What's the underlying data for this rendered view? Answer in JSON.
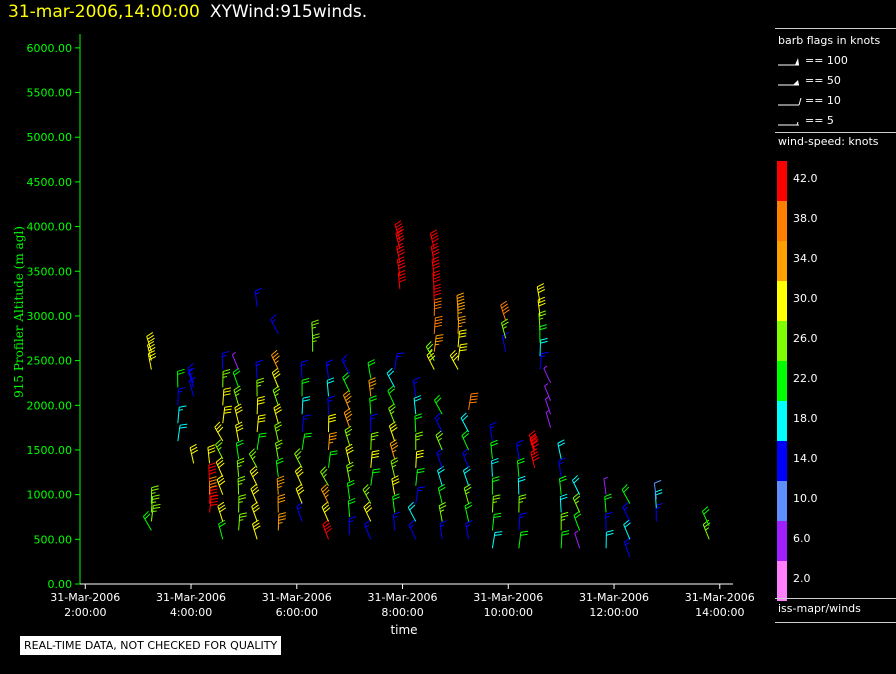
{
  "header": {
    "timestamp": "31-mar-2006,14:00:00",
    "title": "XYWind:915winds."
  },
  "legend": {
    "barb_title": "barb flags in knots",
    "barb_items": [
      "== 100",
      "== 50",
      "== 10",
      "== 5"
    ],
    "speed_title": "wind-speed: knots",
    "color_bins": [
      {
        "label": "42.0",
        "color": "#ff0000"
      },
      {
        "label": "38.0",
        "color": "#ff7f00"
      },
      {
        "label": "34.0",
        "color": "#ff9f00"
      },
      {
        "label": "30.0",
        "color": "#ffff00"
      },
      {
        "label": "26.0",
        "color": "#7fff00"
      },
      {
        "label": "22.0",
        "color": "#00ff00"
      },
      {
        "label": "18.0",
        "color": "#00ffff"
      },
      {
        "label": "14.0",
        "color": "#0000ff"
      },
      {
        "label": "10.0",
        "color": "#5f8fff"
      },
      {
        "label": "6.0",
        "color": "#9f1fff"
      },
      {
        "label": "2.0",
        "color": "#ff7fff"
      }
    ],
    "source": "iss-mapr/winds"
  },
  "notice": "REAL-TIME DATA, NOT CHECKED FOR QUALITY",
  "chart_data": {
    "type": "scatter",
    "subtype": "wind-barb profile",
    "xlabel": "time",
    "ylabel": "915 Profiler Altitude (m agl)",
    "axis_color": "#00ff00",
    "x_range_hours": [
      2,
      14
    ],
    "ylim": [
      0,
      6200
    ],
    "y_ticks": [
      0,
      500,
      1000,
      1500,
      2000,
      2500,
      3000,
      3500,
      4000,
      4500,
      5000,
      5500,
      6000
    ],
    "y_tick_labels": [
      "0.00",
      "500.00",
      "1000.00",
      "1500.00",
      "2000.00",
      "2500.00",
      "3000.00",
      "3500.00",
      "4000.00",
      "4500.00",
      "5000.00",
      "5500.00",
      "6000.00"
    ],
    "x_ticks": [
      2,
      4,
      6,
      8,
      10,
      12,
      14
    ],
    "x_tick_labels": [
      [
        "31-Mar-2006",
        "2:00:00"
      ],
      [
        "31-Mar-2006",
        "4:00:00"
      ],
      [
        "31-Mar-2006",
        "6:00:00"
      ],
      [
        "31-Mar-2006",
        "8:00:00"
      ],
      [
        "31-Mar-2006",
        "10:00:00"
      ],
      [
        "31-Mar-2006",
        "12:00:00"
      ],
      [
        "31-Mar-2006",
        "14:00:00"
      ]
    ],
    "profiles": [
      {
        "time": 3.25,
        "alts": [
          600,
          700,
          800,
          900
        ],
        "speeds": [
          22,
          24,
          26,
          26
        ]
      },
      {
        "time": 3.25,
        "alts": [
          2400,
          2500,
          2600
        ],
        "speeds": [
          28,
          30,
          30
        ]
      },
      {
        "time": 3.75,
        "alts": [
          1600,
          1800,
          2000,
          2200
        ],
        "speeds": [
          18,
          16,
          14,
          22
        ]
      },
      {
        "time": 4.05,
        "alts": [
          1350,
          2100,
          2200,
          2250
        ],
        "speeds": [
          30,
          12,
          14,
          14
        ]
      },
      {
        "time": 4.35,
        "alts": [
          800,
          900,
          1000,
          1150,
          1350
        ],
        "speeds": [
          42,
          42,
          38,
          40,
          30
        ]
      },
      {
        "time": 4.6,
        "alts": [
          500,
          700,
          1000,
          1200,
          1400,
          1600,
          1800,
          2000,
          2200,
          2400
        ],
        "speeds": [
          22,
          30,
          30,
          28,
          26,
          30,
          28,
          28,
          26,
          14
        ]
      },
      {
        "time": 4.9,
        "alts": [
          600,
          800,
          1000,
          1200,
          1400,
          1600,
          1800,
          2000,
          2200,
          2400
        ],
        "speeds": [
          24,
          26,
          26,
          24,
          22,
          28,
          30,
          26,
          22,
          6
        ]
      },
      {
        "time": 5.25,
        "alts": [
          500,
          700,
          900,
          1100,
          1300,
          1500,
          1700,
          1900,
          2100,
          2300,
          3100
        ],
        "speeds": [
          28,
          30,
          30,
          28,
          24,
          22,
          30,
          28,
          26,
          14,
          14
        ]
      },
      {
        "time": 5.65,
        "alts": [
          600,
          800,
          1000,
          1200,
          1400,
          1600,
          1800,
          2000,
          2200,
          2400,
          2800
        ],
        "speeds": [
          34,
          32,
          34,
          22,
          26,
          24,
          28,
          26,
          30,
          34,
          14
        ]
      },
      {
        "time": 6.1,
        "alts": [
          700,
          900,
          1100,
          1300,
          1500,
          1700,
          1900,
          2100,
          2300
        ],
        "speeds": [
          14,
          28,
          30,
          26,
          22,
          14,
          18,
          22,
          14
        ]
      },
      {
        "time": 6.3,
        "alts": [
          2600,
          2750
        ],
        "speeds": [
          26,
          26
        ]
      },
      {
        "time": 6.6,
        "alts": [
          500,
          700,
          900,
          1100,
          1300,
          1500,
          1700,
          1900,
          2100,
          2300
        ],
        "speeds": [
          42,
          30,
          34,
          26,
          22,
          34,
          30,
          14,
          18,
          14
        ]
      },
      {
        "time": 7.0,
        "alts": [
          550,
          750,
          950,
          1150,
          1350,
          1550,
          1750,
          1950,
          2150,
          2350
        ],
        "speeds": [
          14,
          22,
          22,
          26,
          30,
          26,
          34,
          34,
          22,
          14
        ]
      },
      {
        "time": 7.4,
        "alts": [
          500,
          700,
          900,
          1100,
          1300,
          1500,
          1700,
          1900,
          2100,
          2300
        ],
        "speeds": [
          14,
          30,
          26,
          22,
          30,
          26,
          14,
          22,
          34,
          22
        ]
      },
      {
        "time": 7.85,
        "alts": [
          600,
          800,
          1000,
          1200,
          1400,
          1600,
          1800,
          2000,
          2200,
          2400
        ],
        "speeds": [
          14,
          22,
          30,
          26,
          34,
          30,
          26,
          22,
          18,
          14
        ]
      },
      {
        "time": 8.25,
        "alts": [
          500,
          700,
          900,
          1100,
          1300,
          1500,
          1700,
          1900,
          2100
        ],
        "speeds": [
          14,
          18,
          14,
          22,
          30,
          26,
          22,
          18,
          14
        ]
      },
      {
        "time": 7.95,
        "alts": [
          3300,
          3450,
          3600,
          3750,
          3850
        ],
        "speeds": [
          42,
          42,
          42,
          42,
          42
        ]
      },
      {
        "time": 8.6,
        "alts": [
          2400,
          2500,
          2600,
          2800,
          3000,
          3150,
          3300,
          3450,
          3600,
          3750
        ],
        "speeds": [
          30,
          26,
          34,
          38,
          38,
          42,
          42,
          42,
          42,
          42
        ]
      },
      {
        "time": 8.75,
        "alts": [
          500,
          700,
          900,
          1100,
          1300,
          1500,
          1700,
          1900
        ],
        "speeds": [
          14,
          26,
          22,
          18,
          14,
          26,
          14,
          22
        ]
      },
      {
        "time": 9.05,
        "alts": [
          2400,
          2500,
          2650,
          2800,
          2950,
          3050
        ],
        "speeds": [
          30,
          30,
          30,
          34,
          34,
          34
        ]
      },
      {
        "time": 9.25,
        "alts": [
          500,
          700,
          900,
          1100,
          1300,
          1500,
          1700,
          1950
        ],
        "speeds": [
          14,
          22,
          26,
          18,
          14,
          22,
          18,
          38
        ]
      },
      {
        "time": 9.7,
        "alts": [
          400,
          600,
          800,
          1000,
          1200,
          1400,
          1600
        ],
        "speeds": [
          18,
          22,
          26,
          22,
          18,
          22,
          14
        ]
      },
      {
        "time": 9.95,
        "alts": [
          2600,
          2750,
          2950
        ],
        "speeds": [
          14,
          26,
          38
        ]
      },
      {
        "time": 10.2,
        "alts": [
          400,
          600,
          800,
          1000,
          1200,
          1400
        ],
        "speeds": [
          22,
          14,
          26,
          18,
          22,
          14
        ]
      },
      {
        "time": 10.5,
        "alts": [
          1300,
          1450,
          1500
        ],
        "speeds": [
          42,
          42,
          42
        ]
      },
      {
        "time": 10.6,
        "alts": [
          2400,
          2550,
          2700,
          2850,
          3000,
          3150
        ],
        "speeds": [
          14,
          18,
          22,
          26,
          30,
          30
        ]
      },
      {
        "time": 10.8,
        "alts": [
          1750,
          1900,
          2050,
          2250
        ],
        "speeds": [
          6,
          6,
          6,
          6
        ]
      },
      {
        "time": 11.0,
        "alts": [
          400,
          600,
          800,
          1000,
          1200,
          1400
        ],
        "speeds": [
          22,
          26,
          18,
          22,
          14,
          18
        ]
      },
      {
        "time": 11.35,
        "alts": [
          400,
          600,
          800,
          1000
        ],
        "speeds": [
          6,
          22,
          26,
          18
        ]
      },
      {
        "time": 11.85,
        "alts": [
          400,
          600,
          800,
          1000
        ],
        "speeds": [
          18,
          14,
          22,
          6
        ]
      },
      {
        "time": 12.3,
        "alts": [
          300,
          500,
          700,
          900
        ],
        "speeds": [
          14,
          18,
          14,
          22
        ]
      },
      {
        "time": 12.8,
        "alts": [
          700,
          850,
          950
        ],
        "speeds": [
          14,
          18,
          10
        ]
      },
      {
        "time": 13.8,
        "alts": [
          500,
          650
        ],
        "speeds": [
          26,
          22
        ]
      }
    ]
  }
}
